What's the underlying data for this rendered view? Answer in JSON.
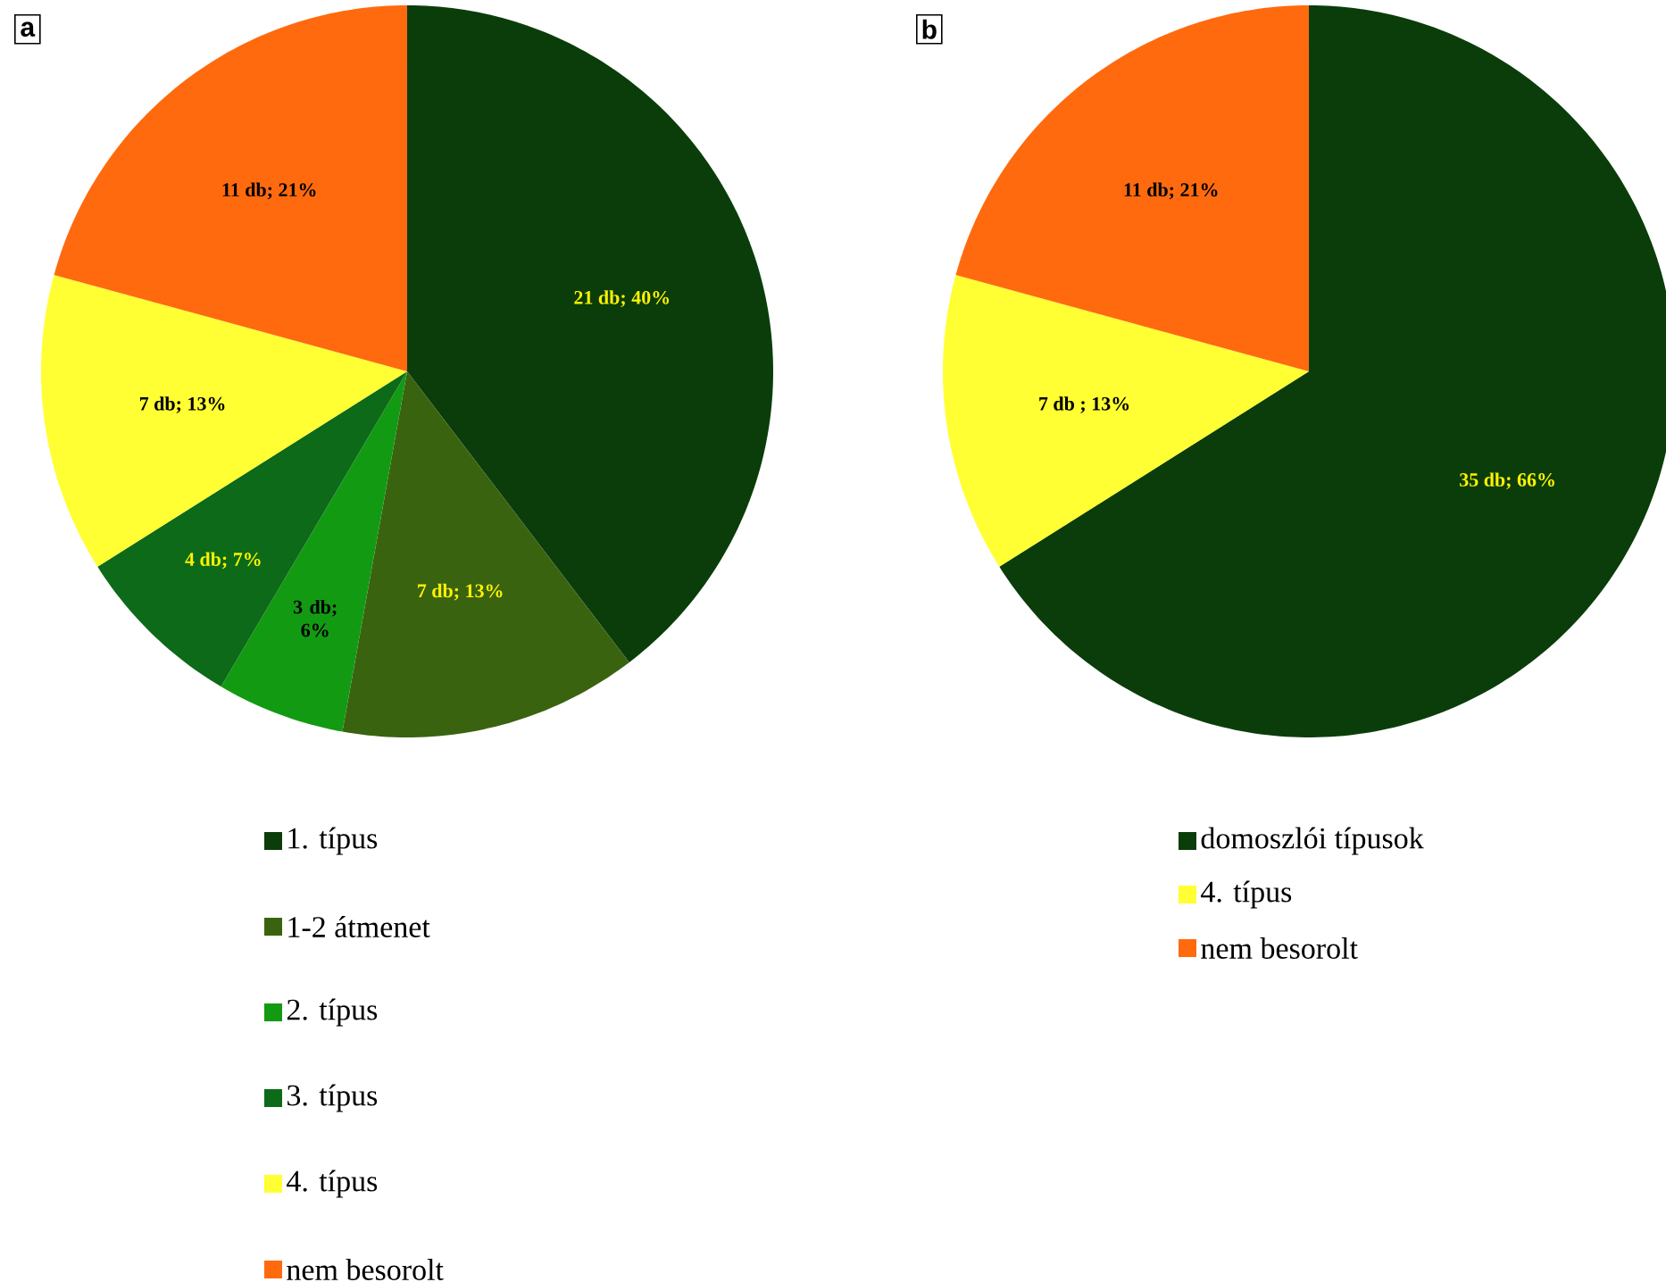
{
  "chart_data": [
    {
      "type": "pie",
      "title": "a",
      "categories": [
        "1. típus",
        "1-2 átmenet",
        "2. típus",
        "3. típus",
        "4. típus",
        "nem besorolt"
      ],
      "values": [
        21,
        7,
        3,
        4,
        7,
        11
      ],
      "colors": [
        "#0b3d0b",
        "#3a6310",
        "#139a13",
        "#0c6a18",
        "#ffff33",
        "#ff6a0e"
      ],
      "value_labels": [
        "21 db; 40%",
        "7 db; 13%",
        "3 db; 6%",
        "4 db; 7%",
        "7 db; 13%",
        "11 db; 21%"
      ],
      "legend": "bottom"
    },
    {
      "type": "pie",
      "title": "b",
      "categories": [
        "domoszlói típusok",
        "4. típus",
        "nem besorolt"
      ],
      "values": [
        35,
        7,
        11
      ],
      "colors": [
        "#0b3d0b",
        "#ffff33",
        "#ff6a0e"
      ],
      "value_labels": [
        "35 db; 66%",
        "7 db ; 13%",
        "11 db; 21%"
      ],
      "legend": "bottom"
    }
  ]
}
